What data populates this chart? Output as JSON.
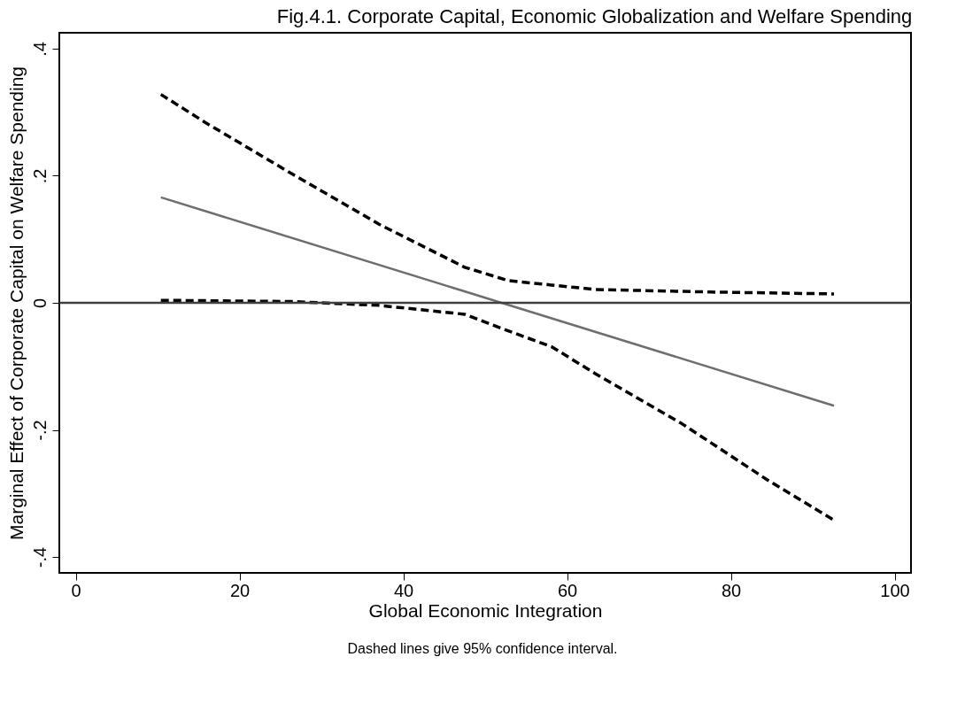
{
  "chart_data": {
    "type": "line",
    "title": "Fig.4.1. Corporate Capital, Economic Globalization and Welfare Spending",
    "xlabel": "Global Economic Integration",
    "ylabel": "Marginal Effect of Corporate Capital on Welfare Spending",
    "annotations": [
      "Dashed lines give 95% confidence interval."
    ],
    "xlim": [
      -2,
      102
    ],
    "xticks": [
      0,
      20,
      40,
      60,
      80,
      100
    ],
    "ylim": [
      -0.425,
      0.425
    ],
    "yticks": [
      {
        "value": -0.4,
        "label": "-.4"
      },
      {
        "value": -0.2,
        "label": "-.2"
      },
      0,
      {
        "value": 0.2,
        "label": ".2"
      },
      {
        "value": 0.4,
        "label": ".4"
      }
    ],
    "grid": false,
    "series": [
      {
        "color": "#6e6e6e",
        "line_style": "solid",
        "x": [
          10.4,
          52.0,
          92.6
        ],
        "values": [
          0.166,
          0.0,
          -0.162
        ]
      },
      {
        "color": "#000000",
        "line_style": "dashed",
        "x": [
          10.4,
          15.8,
          26.4,
          37.0,
          47.5,
          52.8,
          58.1,
          63.4,
          77.5,
          92.6
        ],
        "values": [
          0.328,
          0.284,
          0.203,
          0.124,
          0.056,
          0.035,
          0.028,
          0.021,
          0.017,
          0.014
        ]
      },
      {
        "color": "#000000",
        "line_style": "dashed",
        "x": [
          10.4,
          26.4,
          37.0,
          47.5,
          52.8,
          58.1,
          63.4,
          74.0,
          84.5,
          92.6
        ],
        "values": [
          0.004,
          0.002,
          -0.004,
          -0.018,
          -0.044,
          -0.069,
          -0.111,
          -0.19,
          -0.279,
          -0.342
        ]
      }
    ],
    "ref_lines": [
      {
        "axis": "y",
        "value": 0,
        "color": "#404040",
        "line_style": "solid"
      }
    ]
  }
}
